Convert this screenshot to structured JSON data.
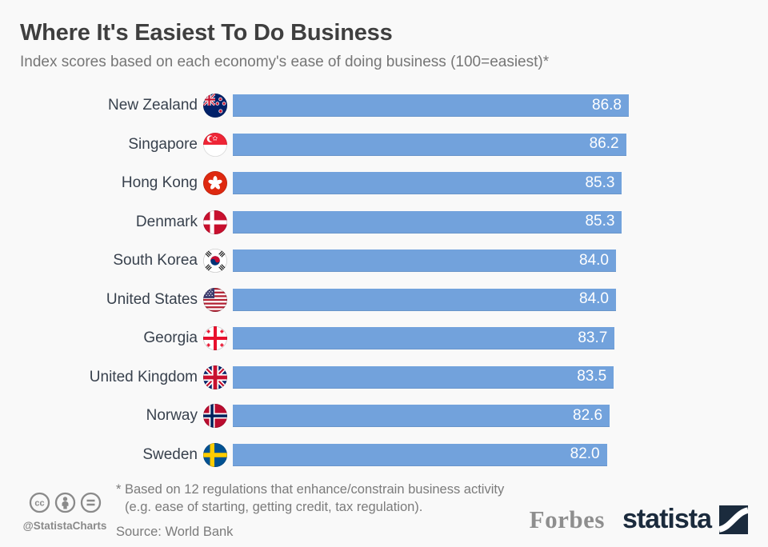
{
  "header": {
    "title": "Where It's Easiest To Do Business",
    "subtitle": "Index scores based on each economy's ease of doing business (100=easiest)*"
  },
  "chart_data": {
    "type": "bar",
    "orientation": "horizontal",
    "title": "Where It's Easiest To Do Business",
    "subtitle": "Index scores based on each economy's ease of doing business (100=easiest)*",
    "categories": [
      "New Zealand",
      "Singapore",
      "Hong Kong",
      "Denmark",
      "South Korea",
      "United States",
      "Georgia",
      "United Kingdom",
      "Norway",
      "Sweden"
    ],
    "values": [
      86.8,
      86.2,
      85.3,
      85.3,
      84.0,
      84.0,
      83.7,
      83.5,
      82.6,
      82.0
    ],
    "value_labels": [
      "86.8",
      "86.2",
      "85.3",
      "85.3",
      "84.0",
      "84.0",
      "83.7",
      "83.5",
      "82.6",
      "82.0"
    ],
    "flags": [
      "nz",
      "sg",
      "hk",
      "dk",
      "kr",
      "us",
      "ge",
      "gb",
      "no",
      "se"
    ],
    "xlim": [
      0,
      86.8
    ],
    "grid": false,
    "legend": false,
    "bar_color": "#72a2dc",
    "value_label_color": "#ffffff"
  },
  "footer": {
    "license_icons": [
      "cc-icon",
      "attribution-icon",
      "no-derivatives-icon"
    ],
    "license_handle": "@StatistaCharts",
    "footnote_line1": "* Based on 12 regulations that enhance/constrain business activity",
    "footnote_line2": "(e.g. ease of starting, getting credit, tax regulation).",
    "source": "Source: World Bank",
    "brand_partner": "Forbes",
    "brand": "statista"
  },
  "colors": {
    "background": "#f9f9f9",
    "bar_blue": "#72a2dc",
    "brand_navy": "#1b2b3d",
    "text_dark": "#3f3f3f",
    "text_gray": "#767676"
  }
}
